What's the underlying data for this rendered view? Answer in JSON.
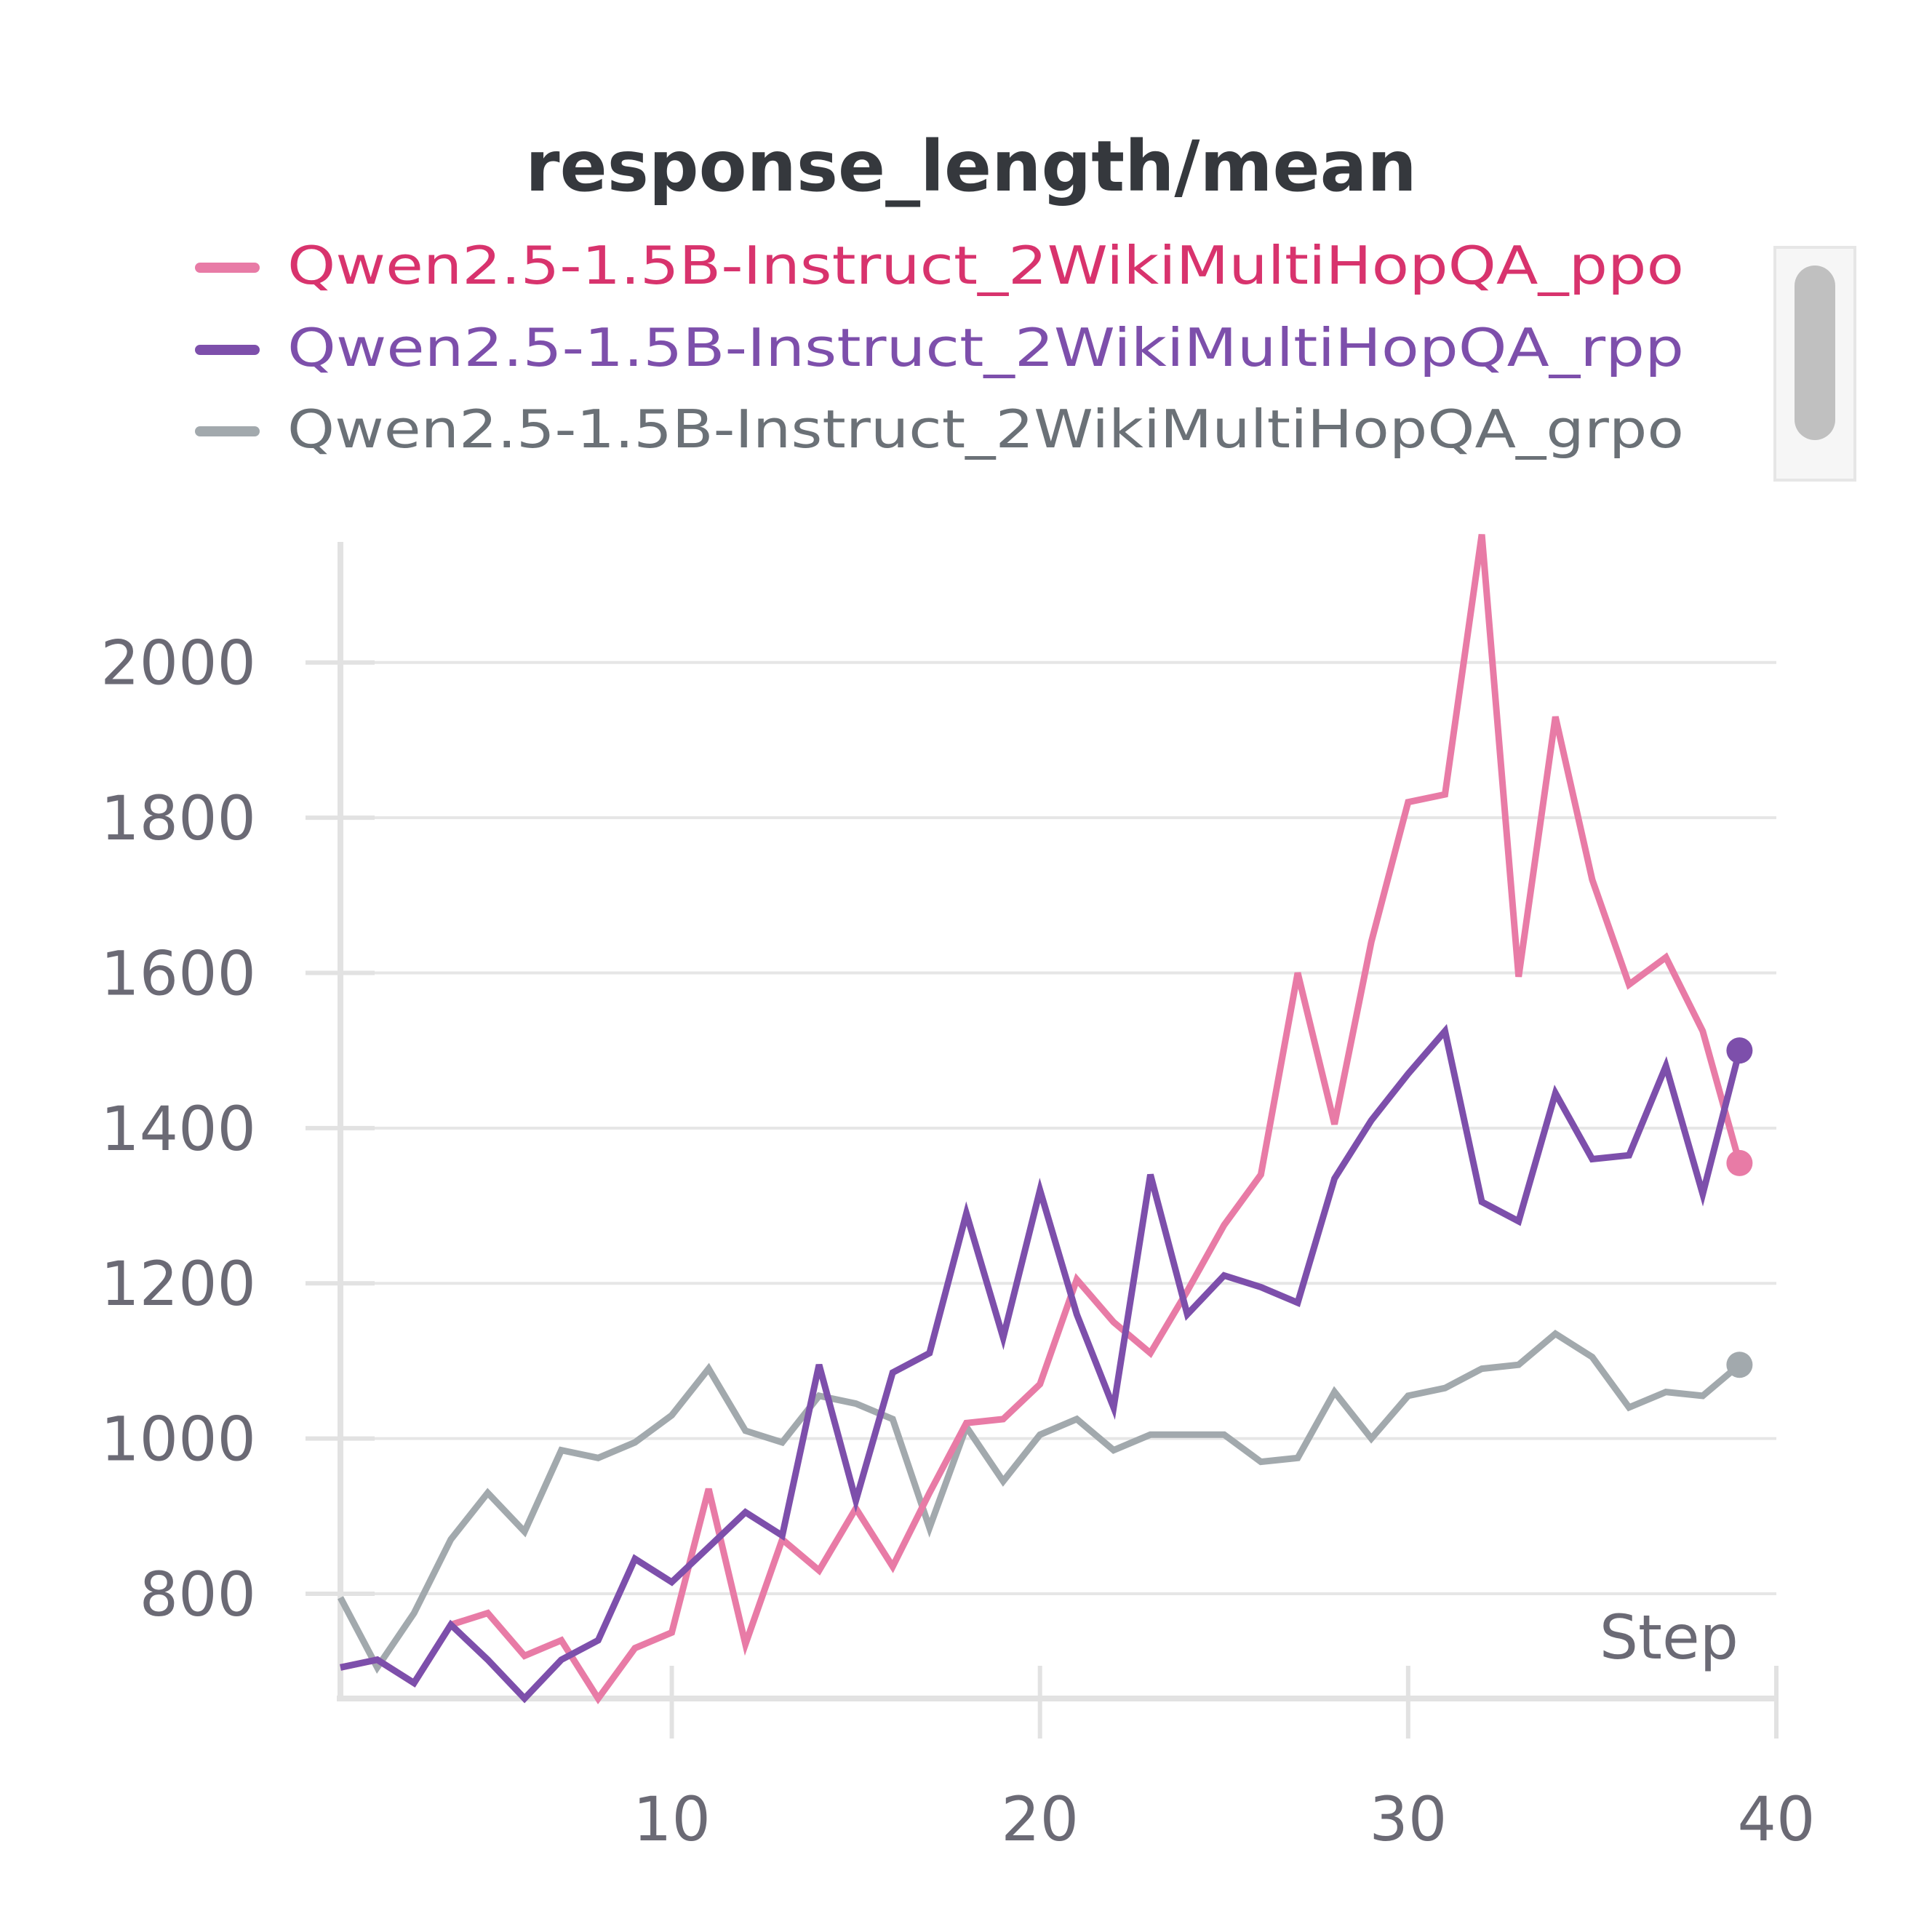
{
  "chart_data": {
    "type": "line",
    "title": "response_length/mean",
    "xlabel": "Step",
    "ylabel": "",
    "xlim": [
      1,
      40
    ],
    "ylim": [
      665,
      2160
    ],
    "x_ticks": [
      10,
      20,
      30,
      40
    ],
    "y_ticks": [
      800,
      1000,
      1200,
      1400,
      1600,
      1800,
      2000
    ],
    "grid": true,
    "legend_position": "top",
    "x": [
      1,
      2,
      3,
      4,
      5,
      6,
      7,
      8,
      9,
      10,
      11,
      12,
      13,
      14,
      15,
      16,
      17,
      18,
      19,
      20,
      21,
      22,
      23,
      24,
      25,
      26,
      27,
      28,
      29,
      30,
      31,
      32,
      33,
      34,
      35,
      36,
      37,
      38,
      39
    ],
    "series": [
      {
        "name": "Qwen2.5-1.5B-Instruct_2WikiMultiHopQA_ppo",
        "color": "#e87ba6",
        "text_color": "#d8336d",
        "values": [
          705,
          715,
          685,
          760,
          775,
          720,
          740,
          665,
          730,
          750,
          935,
          735,
          870,
          830,
          910,
          835,
          930,
          1020,
          1025,
          1070,
          1205,
          1150,
          1110,
          1190,
          1275,
          1340,
          1600,
          1405,
          1640,
          1820,
          1830,
          2165,
          1595,
          1930,
          1720,
          1585,
          1620,
          1525,
          1355
        ]
      },
      {
        "name": "Qwen2.5-1.5B-Instruct_2WikiMultiHopQA_rpp",
        "color": "#7d4fab",
        "text_color": "#7d4fab",
        "values": [
          705,
          715,
          685,
          760,
          715,
          665,
          715,
          740,
          845,
          815,
          860,
          905,
          875,
          1095,
          920,
          1085,
          1110,
          1290,
          1130,
          1320,
          1160,
          1040,
          1340,
          1160,
          1210,
          1195,
          1175,
          1335,
          1410,
          1470,
          1525,
          1305,
          1280,
          1445,
          1360,
          1365,
          1480,
          1315,
          1500
        ]
      },
      {
        "name": "Qwen2.5-1.5B-Instruct_2WikiMultiHopQA_grpo",
        "color": "#a2a9ad",
        "text_color": "#6b7177",
        "values": [
          795,
          705,
          775,
          870,
          930,
          880,
          985,
          975,
          995,
          1030,
          1090,
          1010,
          995,
          1055,
          1045,
          1025,
          885,
          1015,
          945,
          1005,
          1025,
          985,
          1005,
          1005,
          1005,
          970,
          975,
          1060,
          1000,
          1055,
          1065,
          1090,
          1095,
          1135,
          1105,
          1040,
          1060,
          1055,
          1095
        ]
      }
    ]
  }
}
